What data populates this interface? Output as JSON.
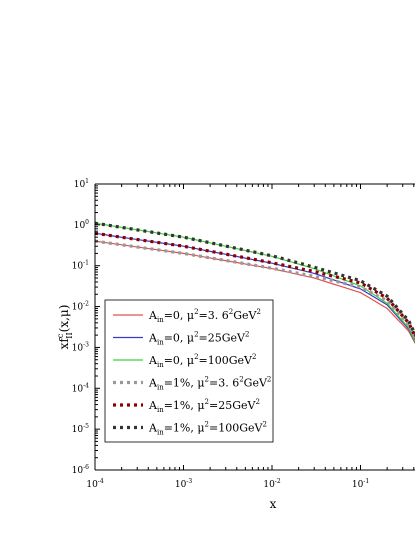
{
  "chart_data": {
    "type": "line",
    "xlabel": "x",
    "ylabel": "xf",
    "ylabel_sup": "c",
    "ylabel_sub": "II",
    "ylabel_args": "(x,μ)",
    "x_scale": "log",
    "y_scale": "log",
    "xlim": [
      0.0001,
      0.5
    ],
    "ylim": [
      1e-06,
      10
    ],
    "x_ticks": [
      {
        "value": 0.0001,
        "base": "10",
        "exp": "-4"
      },
      {
        "value": 0.001,
        "base": "10",
        "exp": "-3"
      },
      {
        "value": 0.01,
        "base": "10",
        "exp": "-2"
      },
      {
        "value": 0.1,
        "base": "10",
        "exp": "-1"
      }
    ],
    "y_ticks": [
      {
        "value": 10,
        "base": "10",
        "exp": "1"
      },
      {
        "value": 1,
        "base": "10",
        "exp": "0"
      },
      {
        "value": 0.1,
        "base": "10",
        "exp": "-1"
      },
      {
        "value": 0.01,
        "base": "10",
        "exp": "-2"
      },
      {
        "value": 0.001,
        "base": "10",
        "exp": "-3"
      },
      {
        "value": 0.0001,
        "base": "10",
        "exp": "-4"
      },
      {
        "value": 1e-05,
        "base": "10",
        "exp": "-5"
      },
      {
        "value": 1e-06,
        "base": "10",
        "exp": "-6"
      }
    ],
    "legend_position": "bottom-left",
    "series": [
      {
        "name_parts": [
          "A",
          "in",
          "=0, μ",
          "2",
          "=3. 6",
          "2",
          "GeV",
          "2"
        ],
        "color": "#e05050",
        "style": "solid",
        "x": [
          0.0001,
          0.001,
          0.01,
          0.03,
          0.1,
          0.2,
          0.35,
          0.5
        ],
        "y": [
          0.4,
          0.2,
          0.085,
          0.05,
          0.022,
          0.009,
          0.0025,
          0.0006
        ]
      },
      {
        "name_parts": [
          "A",
          "in",
          "=0, μ",
          "2",
          "=25GeV",
          "2"
        ],
        "color": "#3a3ac8",
        "style": "solid",
        "x": [
          0.0001,
          0.001,
          0.01,
          0.03,
          0.1,
          0.2,
          0.35,
          0.5
        ],
        "y": [
          0.62,
          0.3,
          0.115,
          0.065,
          0.027,
          0.011,
          0.0028,
          0.0006
        ]
      },
      {
        "name_parts": [
          "A",
          "in",
          "=0, μ",
          "2",
          "=100GeV",
          "2"
        ],
        "color": "#3ad23a",
        "style": "solid",
        "x": [
          0.0001,
          0.001,
          0.01,
          0.03,
          0.1,
          0.2,
          0.35,
          0.5
        ],
        "y": [
          1.1,
          0.5,
          0.17,
          0.085,
          0.032,
          0.012,
          0.003,
          0.0006
        ]
      },
      {
        "name_parts": [
          "A",
          "in",
          "=1%, μ",
          "2",
          "=3. 6",
          "2",
          "GeV",
          "2"
        ],
        "color": "#999999",
        "style": "dotted",
        "x": [
          0.0001,
          0.001,
          0.01,
          0.03,
          0.1,
          0.2,
          0.35,
          0.5
        ],
        "y": [
          0.4,
          0.2,
          0.087,
          0.055,
          0.03,
          0.014,
          0.0035,
          0.0007
        ]
      },
      {
        "name_parts": [
          "A",
          "in",
          "=1%, μ",
          "2",
          "=25GeV",
          "2"
        ],
        "color": "#8b0000",
        "style": "dotted",
        "x": [
          0.0001,
          0.001,
          0.01,
          0.03,
          0.1,
          0.2,
          0.35,
          0.5
        ],
        "y": [
          0.62,
          0.3,
          0.118,
          0.072,
          0.038,
          0.016,
          0.004,
          0.0008
        ]
      },
      {
        "name_parts": [
          "A",
          "in",
          "=1%, μ",
          "2",
          "=100GeV",
          "2"
        ],
        "color": "#333333",
        "style": "dotted",
        "x": [
          0.0001,
          0.001,
          0.01,
          0.03,
          0.1,
          0.2,
          0.35,
          0.5
        ],
        "y": [
          1.1,
          0.5,
          0.175,
          0.092,
          0.043,
          0.018,
          0.0045,
          0.0009
        ]
      }
    ]
  }
}
